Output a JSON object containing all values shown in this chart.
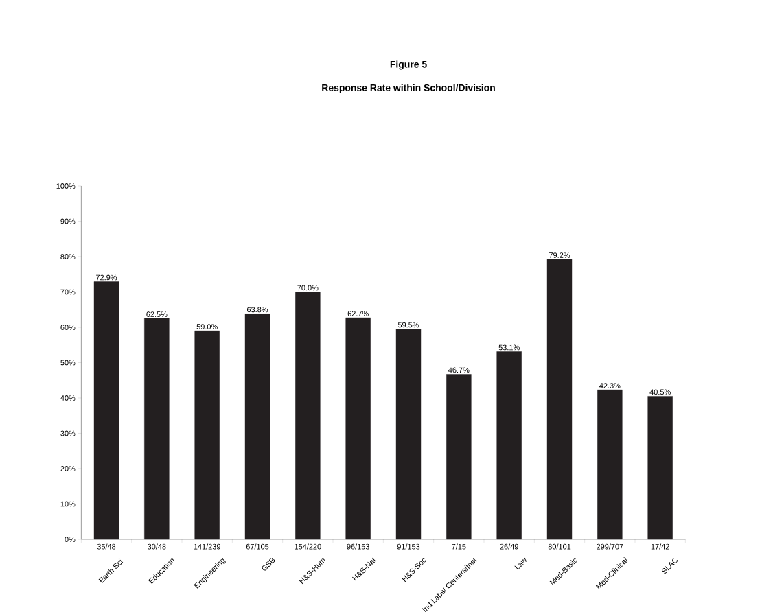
{
  "chart_data": {
    "type": "bar",
    "title": "Figure 5",
    "subtitle": "Response Rate within School/Division",
    "categories": [
      "Earth Sci.",
      "Education",
      "Engineering",
      "GSB",
      "H&S-Hum",
      "H&S-Nat",
      "H&S-Soc",
      "Ind Labs/ Centers/Inst",
      "Law",
      "Med-Basic",
      "Med-Clinical",
      "SLAC"
    ],
    "values": [
      72.9,
      62.5,
      59.0,
      63.8,
      70.0,
      62.7,
      59.5,
      46.7,
      53.1,
      79.2,
      42.3,
      40.5
    ],
    "value_labels": [
      "72.9%",
      "62.5%",
      "59.0%",
      "63.8%",
      "70.0%",
      "62.7%",
      "59.5%",
      "46.7%",
      "53.1%",
      "79.2%",
      "42.3%",
      "40.5%"
    ],
    "color": "#231f20",
    "ylim": [
      0,
      100
    ],
    "yticks": [
      {
        "value": 0,
        "label": "0%"
      },
      {
        "value": 10,
        "label": "10%"
      },
      {
        "value": 20,
        "label": "20%"
      },
      {
        "value": 30,
        "label": "30%"
      },
      {
        "value": 40,
        "label": "40%"
      },
      {
        "value": 50,
        "label": "50%"
      },
      {
        "value": 60,
        "label": "60%"
      },
      {
        "value": 70,
        "label": "70%"
      },
      {
        "value": 80,
        "label": "80%"
      },
      {
        "value": 90,
        "label": "90%"
      },
      {
        "value": 100,
        "label": "100%"
      }
    ],
    "annotations": [
      "35/48",
      "30/48",
      "141/239",
      "67/105",
      "154/220",
      "96/153",
      "91/153",
      "7/15",
      "26/49",
      "80/101",
      "299/707",
      "17/42"
    ]
  }
}
